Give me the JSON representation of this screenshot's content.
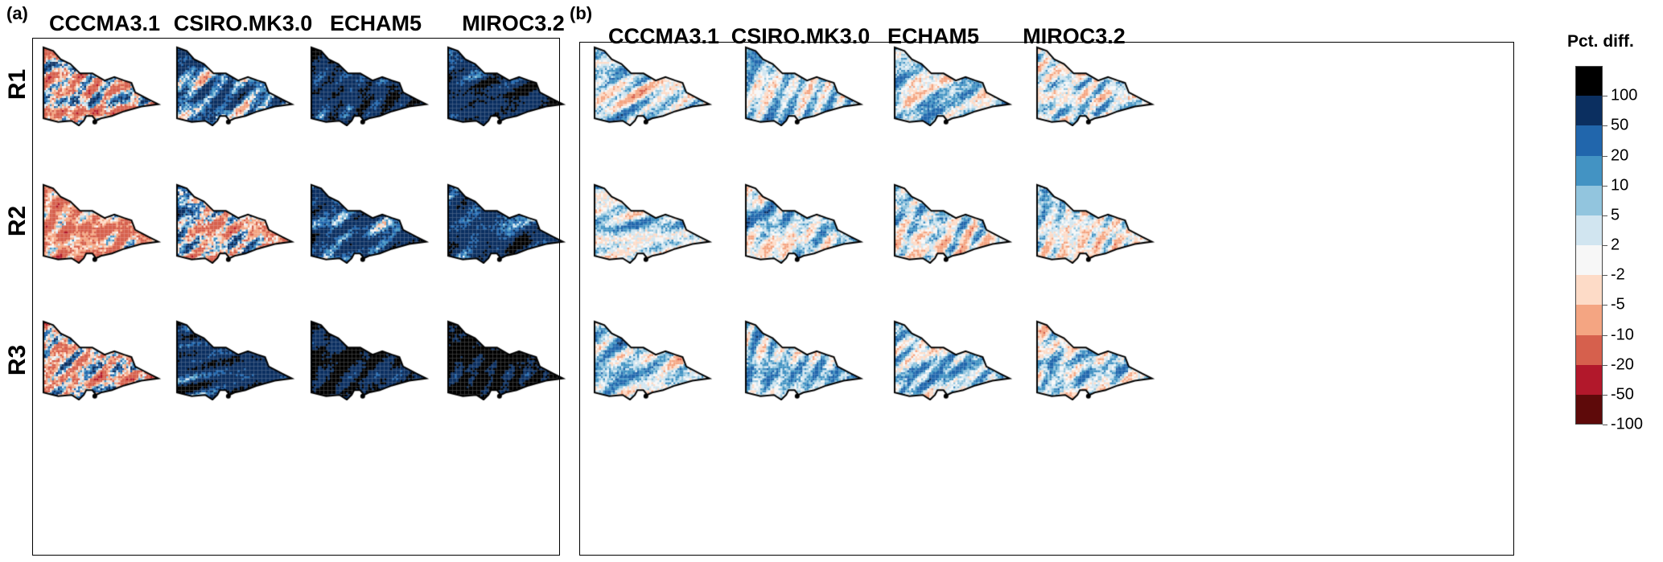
{
  "panels": [
    {
      "label": "(a)",
      "columns": [
        "CCCMA3.1",
        "CSIRO.MK3.0",
        "ECHAM5",
        "MIROC3.2"
      ],
      "rows": [
        "R1",
        "R2",
        "R3"
      ],
      "mean_pct_diff": [
        [
          -8,
          15,
          40,
          40
        ],
        [
          -20,
          -5,
          25,
          30
        ],
        [
          -8,
          35,
          50,
          60
        ]
      ]
    },
    {
      "label": "(b)",
      "columns": [
        "CCCMA3.1",
        "CSIRO.MK3.0",
        "ECHAM5",
        "MIROC3.2"
      ],
      "mean_pct_diff": [
        [
          0,
          3,
          3,
          0
        ],
        [
          0,
          1,
          -1,
          2
        ],
        [
          0,
          3,
          2,
          -1
        ]
      ]
    }
  ],
  "legend": {
    "title": "Pct. diff.",
    "ticks": [
      "100",
      "50",
      "20",
      "10",
      "5",
      "2",
      "-2",
      "-5",
      "-10",
      "-20",
      "-50",
      "-100"
    ],
    "breaks": [
      -100,
      -50,
      -20,
      -10,
      -5,
      -2,
      2,
      5,
      10,
      20,
      50,
      100
    ],
    "colors_top_to_bottom": [
      "#000000",
      "#0b2f60",
      "#2166ac",
      "#4393c3",
      "#92c5de",
      "#d1e5f0",
      "#f7f7f7",
      "#fddbc7",
      "#f4a582",
      "#d6604d",
      "#b2182b",
      "#5e0a0a"
    ]
  }
}
